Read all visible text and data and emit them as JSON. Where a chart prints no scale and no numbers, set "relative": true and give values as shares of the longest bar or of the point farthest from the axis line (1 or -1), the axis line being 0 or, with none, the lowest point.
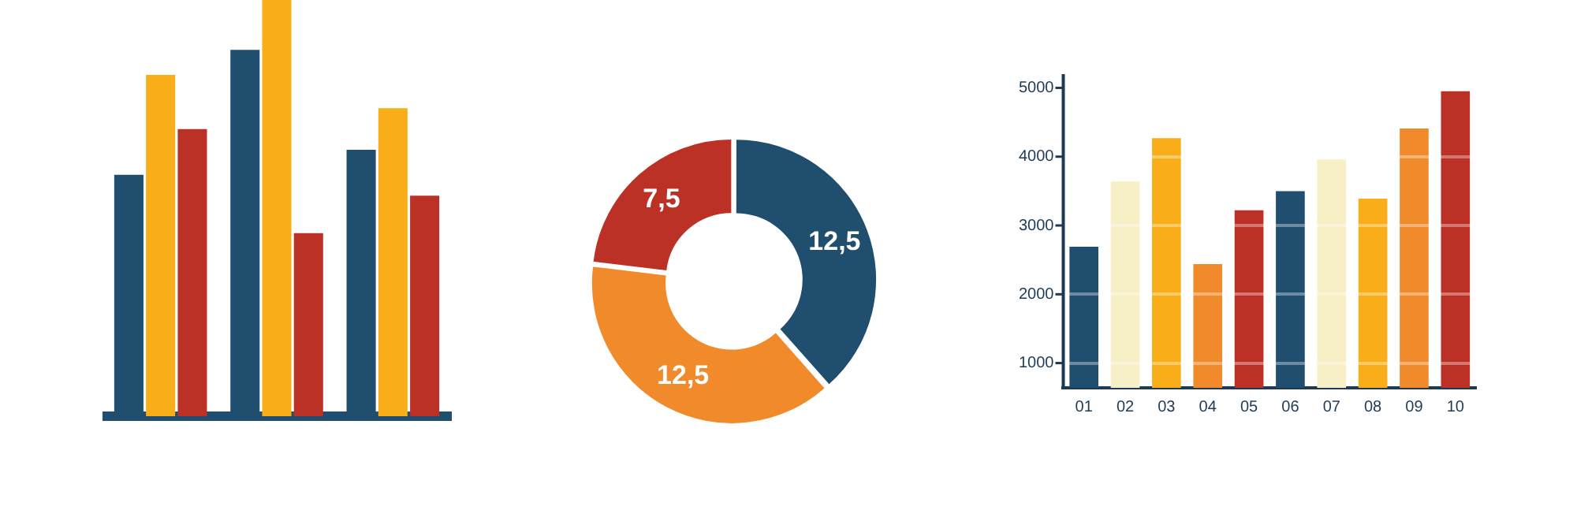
{
  "chart_data": [
    {
      "type": "bar",
      "relative": true,
      "categories": [
        null,
        null,
        null
      ],
      "series": [
        {
          "color": "#1f4e6e",
          "values": [
            0.58,
            0.88,
            0.64
          ]
        },
        {
          "color": "#f9ae19",
          "values": [
            0.82,
            1,
            0.74
          ]
        },
        {
          "color": "#bb3126",
          "values": [
            0.69,
            0.44,
            0.53
          ]
        }
      ],
      "legend": false,
      "grid": false
    },
    {
      "type": "donut",
      "categories": [
        null,
        null,
        null
      ],
      "values": [
        12.5,
        12.5,
        7.5
      ],
      "colors": [
        "#1f4e6e",
        "#f18a2b",
        "#bb3126"
      ],
      "value_labels": [
        "12,5",
        "12,5",
        "7,5"
      ],
      "legend": false
    },
    {
      "type": "bar",
      "categories": [
        "01",
        "02",
        "03",
        "04",
        "05",
        "06",
        "07",
        "08",
        "09",
        "10"
      ],
      "values": [
        2690,
        3640,
        4270,
        2440,
        3220,
        3500,
        3960,
        3390,
        4410,
        4950
      ],
      "colors": [
        "#1f4e6e",
        "#f7f0c6",
        "#f9ae19",
        "#f18a2b",
        "#bb3126",
        "#1f4e6e",
        "#f7f0c6",
        "#f9ae19",
        "#f18a2b",
        "#bb3126"
      ],
      "ylim": [
        640,
        5200
      ],
      "yticks": [
        1000,
        2000,
        3000,
        4000,
        5000
      ],
      "grid": "y",
      "legend": false
    }
  ]
}
